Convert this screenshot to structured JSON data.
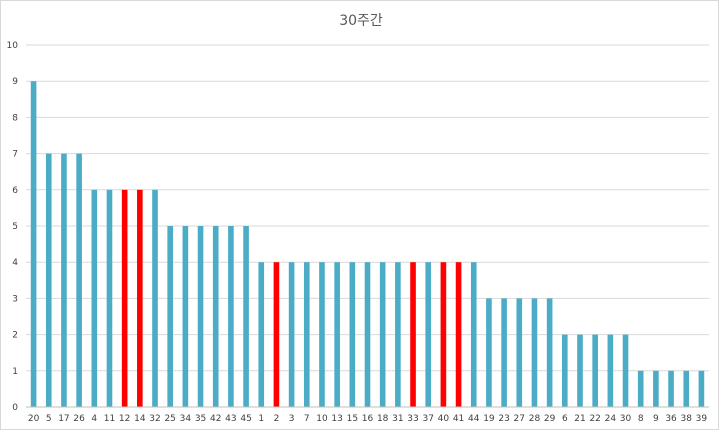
{
  "chart_data": {
    "type": "bar",
    "title": "30주간",
    "xlabel": "",
    "ylabel": "",
    "ylim": [
      0,
      10
    ],
    "yticks": [
      "0",
      "1",
      "2",
      "3",
      "4",
      "5",
      "6",
      "7",
      "8",
      "9",
      "10"
    ],
    "grid": true,
    "legend": "none",
    "categories": [
      "20",
      "5",
      "17",
      "26",
      "4",
      "11",
      "12",
      "14",
      "32",
      "25",
      "34",
      "35",
      "42",
      "43",
      "45",
      "1",
      "2",
      "3",
      "7",
      "10",
      "13",
      "15",
      "16",
      "18",
      "31",
      "33",
      "37",
      "40",
      "41",
      "44",
      "19",
      "23",
      "27",
      "28",
      "29",
      "6",
      "21",
      "22",
      "24",
      "30",
      "8",
      "9",
      "36",
      "38",
      "39"
    ],
    "values": [
      9,
      7,
      7,
      7,
      6,
      6,
      6,
      6,
      6,
      5,
      5,
      5,
      5,
      5,
      5,
      4,
      4,
      4,
      4,
      4,
      4,
      4,
      4,
      4,
      4,
      4,
      4,
      4,
      4,
      4,
      3,
      3,
      3,
      3,
      3,
      2,
      2,
      2,
      2,
      2,
      1,
      1,
      1,
      1,
      1
    ],
    "highlighted": [
      "12",
      "14",
      "2",
      "33",
      "40",
      "41"
    ],
    "colors": {
      "bar": "#4bacc6",
      "highlight": "#ff0000",
      "grid": "#d9d9d9"
    }
  }
}
